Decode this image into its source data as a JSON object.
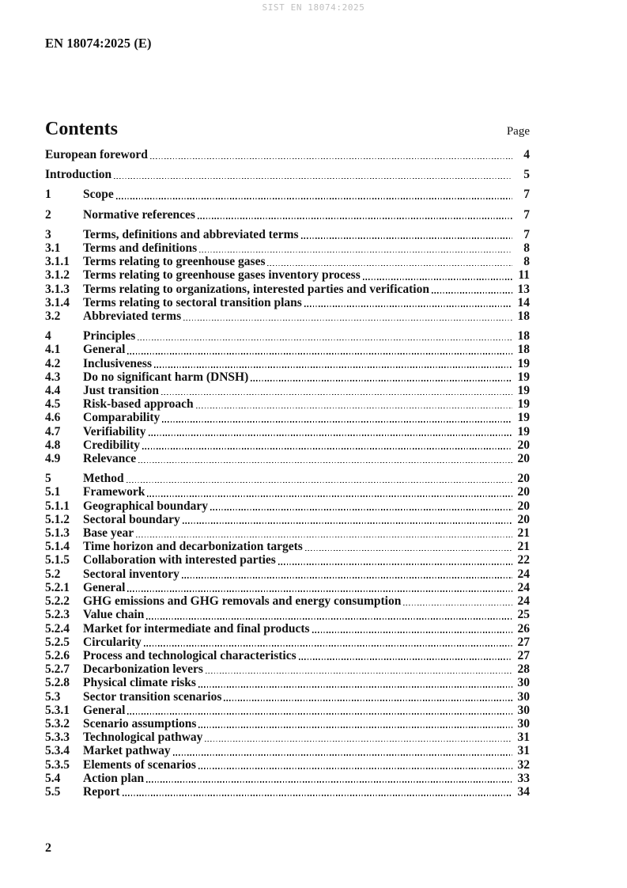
{
  "page": {
    "header_watermark": "SIST EN 18074:2025",
    "document_reference": "EN 18074:2025 (E)",
    "footer_page_number": "2"
  },
  "contents": {
    "heading": "Contents",
    "page_column_label": "Page"
  },
  "toc_entries": [
    {
      "num": "",
      "title": "European foreword",
      "page": "4",
      "level": 1
    },
    {
      "num": "",
      "title": "Introduction",
      "page": "5",
      "level": 1
    },
    {
      "num": "1",
      "title": "Scope",
      "page": "7",
      "level": 1
    },
    {
      "num": "2",
      "title": "Normative references",
      "page": "7",
      "level": 1
    },
    {
      "num": "3",
      "title": "Terms, definitions and abbreviated terms",
      "page": "7",
      "level": 1
    },
    {
      "num": "3.1",
      "title": "Terms and definitions",
      "page": "8",
      "level": 2
    },
    {
      "num": "3.1.1",
      "title": "Terms relating to greenhouse gases",
      "page": "8",
      "level": 3
    },
    {
      "num": "3.1.2",
      "title": "Terms relating to greenhouse gases inventory process",
      "page": "11",
      "level": 3
    },
    {
      "num": "3.1.3",
      "title": "Terms relating to organizations, interested parties and verification",
      "page": "13",
      "level": 3
    },
    {
      "num": "3.1.4",
      "title": "Terms relating to sectoral transition plans",
      "page": "14",
      "level": 3
    },
    {
      "num": "3.2",
      "title": "Abbreviated terms",
      "page": "18",
      "level": 2
    },
    {
      "num": "4",
      "title": "Principles",
      "page": "18",
      "level": 1
    },
    {
      "num": "4.1",
      "title": "General",
      "page": "18",
      "level": 2
    },
    {
      "num": "4.2",
      "title": "Inclusiveness",
      "page": "19",
      "level": 2
    },
    {
      "num": "4.3",
      "title": "Do no significant harm (DNSH)",
      "page": "19",
      "level": 2
    },
    {
      "num": "4.4",
      "title": "Just transition",
      "page": "19",
      "level": 2
    },
    {
      "num": "4.5",
      "title": "Risk-based approach",
      "page": "19",
      "level": 2
    },
    {
      "num": "4.6",
      "title": "Comparability",
      "page": "19",
      "level": 2
    },
    {
      "num": "4.7",
      "title": "Verifiability",
      "page": "19",
      "level": 2
    },
    {
      "num": "4.8",
      "title": "Credibility",
      "page": "20",
      "level": 2
    },
    {
      "num": "4.9",
      "title": "Relevance",
      "page": "20",
      "level": 2
    },
    {
      "num": "5",
      "title": "Method",
      "page": "20",
      "level": 1
    },
    {
      "num": "5.1",
      "title": "Framework",
      "page": "20",
      "level": 2
    },
    {
      "num": "5.1.1",
      "title": "Geographical boundary",
      "page": "20",
      "level": 3
    },
    {
      "num": "5.1.2",
      "title": "Sectoral boundary",
      "page": "20",
      "level": 3
    },
    {
      "num": "5.1.3",
      "title": "Base year",
      "page": "21",
      "level": 3
    },
    {
      "num": "5.1.4",
      "title": "Time horizon and decarbonization targets",
      "page": "21",
      "level": 3
    },
    {
      "num": "5.1.5",
      "title": "Collaboration with interested parties",
      "page": "22",
      "level": 3
    },
    {
      "num": "5.2",
      "title": "Sectoral inventory",
      "page": "24",
      "level": 2
    },
    {
      "num": "5.2.1",
      "title": "General",
      "page": "24",
      "level": 3
    },
    {
      "num": "5.2.2",
      "title": "GHG emissions and GHG removals and energy consumption",
      "page": "24",
      "level": 3
    },
    {
      "num": "5.2.3",
      "title": "Value chain",
      "page": "25",
      "level": 3
    },
    {
      "num": "5.2.4",
      "title": "Market for intermediate and final products",
      "page": "26",
      "level": 3
    },
    {
      "num": "5.2.5",
      "title": "Circularity",
      "page": "27",
      "level": 3
    },
    {
      "num": "5.2.6",
      "title": "Process and technological characteristics",
      "page": "27",
      "level": 3
    },
    {
      "num": "5.2.7",
      "title": "Decarbonization levers",
      "page": "28",
      "level": 3
    },
    {
      "num": "5.2.8",
      "title": "Physical climate risks",
      "page": "30",
      "level": 3
    },
    {
      "num": "5.3",
      "title": "Sector transition scenarios",
      "page": "30",
      "level": 2
    },
    {
      "num": "5.3.1",
      "title": "General",
      "page": "30",
      "level": 3
    },
    {
      "num": "5.3.2",
      "title": "Scenario assumptions",
      "page": "30",
      "level": 3
    },
    {
      "num": "5.3.3",
      "title": "Technological pathway",
      "page": "31",
      "level": 3
    },
    {
      "num": "5.3.4",
      "title": "Market pathway",
      "page": "31",
      "level": 3
    },
    {
      "num": "5.3.5",
      "title": "Elements of scenarios",
      "page": "32",
      "level": 3
    },
    {
      "num": "5.4",
      "title": "Action plan",
      "page": "33",
      "level": 2
    },
    {
      "num": "5.5",
      "title": "Report",
      "page": "34",
      "level": 2
    }
  ],
  "colors": {
    "text": "#111111",
    "watermark": "#bfbfbf",
    "background": "#ffffff"
  }
}
